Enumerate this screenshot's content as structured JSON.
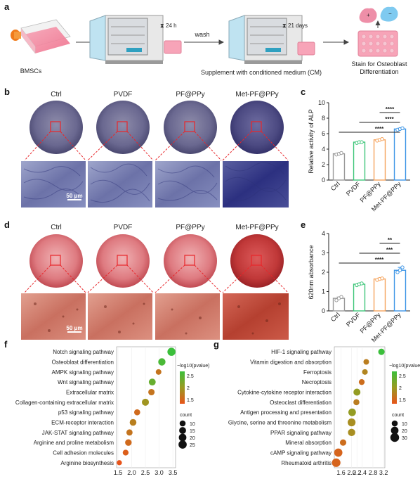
{
  "panel_labels": {
    "a": "a",
    "b": "b",
    "c": "c",
    "d": "d",
    "e": "e",
    "f": "f",
    "g": "g"
  },
  "workflow": {
    "bmsc_label": "BMSCs",
    "incubate_time": "24 h",
    "wash_label": "wash",
    "culture_time": "21 days",
    "supplement_label": "Supplement with conditioned medium (CM)",
    "stain_label_line1": "Stain for Osteoblast",
    "stain_label_line2": "Differentiation"
  },
  "groups": [
    "Ctrl",
    "PVDF",
    "PF@PPy",
    "Met-PF@PPy"
  ],
  "scale_bar": "50 μm",
  "colors": {
    "ctrl": "#9a9a9a",
    "pvdf": "#3fc67a",
    "pfppy": "#f5a35c",
    "met": "#3d95e6",
    "alp_plate": "#6c6a8e",
    "alp_detail": "#5a5c9e",
    "ars_plate": "#d75e6a",
    "ars_detail": "#c86a5e",
    "red_box": "#e8262a",
    "grad_high": "#3bbf3b",
    "grad_low": "#e8541a"
  },
  "chart_data": [
    {
      "panel": "c",
      "type": "bar",
      "categories": [
        "Ctrl",
        "PVDF",
        "PF@PPy",
        "Met-PF@PPy"
      ],
      "values": [
        3.4,
        4.9,
        5.2,
        6.6
      ],
      "points": [
        [
          3.3,
          3.4,
          3.5
        ],
        [
          4.8,
          4.9,
          4.9
        ],
        [
          5.1,
          5.2,
          5.3
        ],
        [
          6.5,
          6.6,
          6.7
        ]
      ],
      "ylabel": "Relative activity of ALP",
      "ylim": [
        0,
        10
      ],
      "yticks": [
        0,
        2,
        4,
        6,
        8,
        10
      ],
      "significance": [
        {
          "from": "Met-PF@PPy",
          "to": "PF@PPy",
          "label": "****"
        },
        {
          "from": "Met-PF@PPy",
          "to": "PVDF",
          "label": "****"
        },
        {
          "from": "Met-PF@PPy",
          "to": "Ctrl",
          "label": "****"
        }
      ]
    },
    {
      "panel": "e",
      "type": "bar",
      "categories": [
        "Ctrl",
        "PVDF",
        "PF@PPy",
        "Met-PF@PPy"
      ],
      "values": [
        0.65,
        1.38,
        1.65,
        2.1
      ],
      "points": [
        [
          0.55,
          0.65,
          0.72
        ],
        [
          1.33,
          1.38,
          1.42
        ],
        [
          1.6,
          1.65,
          1.68
        ],
        [
          2.0,
          2.1,
          2.25
        ]
      ],
      "ylabel": "620nm absorbance",
      "ylim": [
        0,
        4
      ],
      "yticks": [
        0,
        1,
        2,
        3,
        4
      ],
      "significance": [
        {
          "from": "Met-PF@PPy",
          "to": "PF@PPy",
          "label": "**"
        },
        {
          "from": "Met-PF@PPy",
          "to": "PVDF",
          "label": "***"
        },
        {
          "from": "Met-PF@PPy",
          "to": "Ctrl",
          "label": "****"
        }
      ]
    },
    {
      "panel": "f",
      "type": "scatter",
      "categories": [
        "Notch signaling pathway",
        "Osteoblast differentiation",
        "AMPK signaling pathway",
        "Wnt signaling pathway",
        "Extracellular matrix",
        "Collagen-containing extracellular matrix",
        "p53 signaling pathway",
        "ECM-receptor interaction",
        "JAK-STAT signaling pathway",
        "Arginine and proline metabolism",
        "Cell adhesion molecules",
        "Arginine biosynthesis"
      ],
      "x": [
        3.45,
        3.1,
        2.98,
        2.75,
        2.72,
        2.5,
        2.2,
        2.05,
        1.92,
        1.88,
        1.78,
        1.55
      ],
      "count": [
        24,
        18,
        8,
        15,
        12,
        16,
        10,
        14,
        11,
        13,
        9,
        6
      ],
      "neglog10p": [
        2.6,
        2.5,
        1.6,
        2.3,
        1.6,
        1.9,
        1.5,
        1.7,
        1.6,
        1.5,
        1.4,
        1.3
      ],
      "xticks": [
        1.5,
        2.0,
        2.5,
        3.0,
        3.5
      ],
      "xlim": [
        1.45,
        3.6
      ],
      "color_legend_title": "−log10(pvalue)",
      "color_ticks": [
        2.5,
        2.0,
        1.5
      ],
      "size_legend_title": "count",
      "size_legend": [
        10,
        15,
        20,
        25
      ]
    },
    {
      "panel": "g",
      "type": "scatter",
      "categories": [
        "HIF-1 signaling pathway",
        "Vitamin digestion and absorption",
        "Ferroptosis",
        "Necroptosis",
        "Cytokine-cytokine receptor interaction",
        "Osteoclast differentiation",
        "Antigen processing and presentation",
        "Glycine, serine and threonine metabolism",
        "PPAR signaling pathway",
        "Mineral absorption",
        "cAMP signaling pathway",
        "Rheumatoid arthritis"
      ],
      "x": [
        3.12,
        2.55,
        2.5,
        2.38,
        2.2,
        2.18,
        2.02,
        2.0,
        2.0,
        1.68,
        1.5,
        1.42
      ],
      "count": [
        12,
        8,
        8,
        9,
        16,
        10,
        20,
        22,
        18,
        12,
        25,
        28
      ],
      "neglog10p": [
        3.0,
        1.8,
        1.9,
        1.6,
        2.2,
        1.8,
        2.2,
        2.0,
        2.0,
        1.6,
        1.5,
        1.5
      ],
      "xticks": [
        1.6,
        2.0,
        2.2,
        2.4,
        2.8,
        3.2
      ],
      "xlim": [
        1.35,
        3.25
      ],
      "color_legend_title": "−log10(pvalue)",
      "color_ticks": [
        2.5,
        2.0,
        1.5
      ],
      "size_legend_title": "count",
      "size_legend": [
        10,
        20,
        30
      ]
    }
  ]
}
